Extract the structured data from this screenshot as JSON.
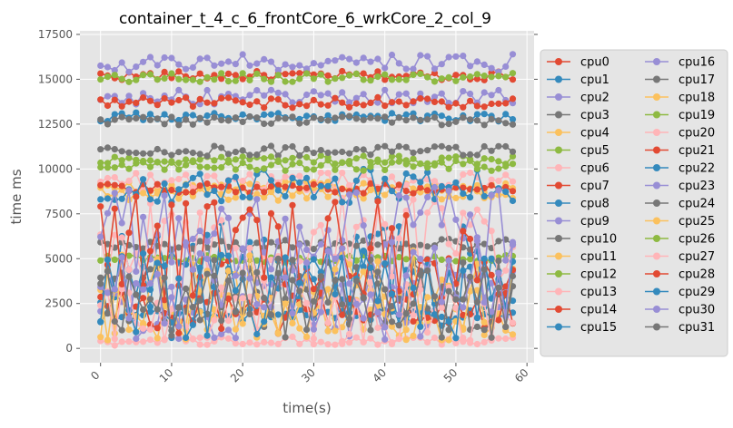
{
  "chart_data": {
    "type": "line",
    "title": "container_t_4_c_6_frontCore_6_wrkCore_2_col_9",
    "xlabel": "time(s)",
    "ylabel": "time ms",
    "xlim": [
      -2.9,
      61
    ],
    "ylim": [
      -800,
      17700
    ],
    "xticks": [
      0,
      10,
      20,
      30,
      40,
      50,
      60
    ],
    "yticks": [
      0,
      2500,
      5000,
      7500,
      10000,
      12500,
      15000,
      17500
    ],
    "ytick_labels": [
      "0",
      "2500",
      "5000",
      "7500",
      "10000",
      "12500",
      "15000",
      "17500"
    ],
    "grid": true,
    "legend": "outside-right, 2 columns",
    "x": [
      0,
      1,
      2,
      3,
      4,
      5,
      6,
      7,
      8,
      9,
      10,
      11,
      12,
      13,
      14,
      15,
      16,
      17,
      18,
      19,
      20,
      21,
      22,
      23,
      24,
      25,
      26,
      27,
      28,
      29,
      30,
      31,
      32,
      33,
      34,
      35,
      36,
      37,
      38,
      39,
      40,
      41,
      42,
      43,
      44,
      45,
      46,
      47,
      48,
      49,
      50,
      51,
      52,
      53,
      54,
      55,
      56,
      57,
      58
    ],
    "series": [
      {
        "name": "cpu0",
        "color": "#E24A33",
        "level": 15200,
        "amp": 250
      },
      {
        "name": "cpu1",
        "color": "#348ABD",
        "level": 12900,
        "amp": 250
      },
      {
        "name": "cpu2",
        "color": "#988ED5",
        "level": 14000,
        "amp": 400
      },
      {
        "name": "cpu3",
        "color": "#777777",
        "level": 12700,
        "amp": 250
      },
      {
        "name": "cpu4",
        "color": "#FBC15E",
        "level": 9000,
        "amp": 300
      },
      {
        "name": "cpu5",
        "color": "#8EBA42",
        "level": 10500,
        "amp": 250
      },
      {
        "name": "cpu6",
        "color": "#FFB5B8",
        "level": 9300,
        "amp": 500
      },
      {
        "name": "cpu7",
        "color": "#E24A33",
        "level": 13700,
        "amp": 300
      },
      {
        "name": "cpu8",
        "color": "#348ABD",
        "level": 1800,
        "amp": 350
      },
      {
        "name": "cpu9",
        "color": "#988ED5",
        "level": 15900,
        "amp": 500
      },
      {
        "name": "cpu10",
        "color": "#777777",
        "level": 11000,
        "amp": 300
      },
      {
        "name": "cpu11",
        "color": "#FBC15E",
        "level": 8600,
        "amp": 400
      },
      {
        "name": "cpu12",
        "color": "#8EBA42",
        "level": 5000,
        "amp": 200
      },
      {
        "name": "cpu13",
        "color": "#FFB5B8",
        "level": 400,
        "amp": 250
      },
      {
        "name": "cpu14",
        "color": "#E24A33",
        "level": 8900,
        "amp": 300
      },
      {
        "name": "cpu15",
        "color": "#348ABD",
        "level": 4500,
        "amp": 2500
      },
      {
        "name": "cpu16",
        "color": "#988ED5",
        "level": 2500,
        "amp": 2200
      },
      {
        "name": "cpu17",
        "color": "#777777",
        "level": 5800,
        "amp": 300
      },
      {
        "name": "cpu18",
        "color": "#FBC15E",
        "level": 1800,
        "amp": 1500
      },
      {
        "name": "cpu19",
        "color": "#8EBA42",
        "level": 15100,
        "amp": 250
      },
      {
        "name": "cpu20",
        "color": "#FFB5B8",
        "level": 6000,
        "amp": 2500
      },
      {
        "name": "cpu21",
        "color": "#E24A33",
        "level": 2000,
        "amp": 1200
      },
      {
        "name": "cpu22",
        "color": "#348ABD",
        "level": 9000,
        "amp": 1000
      },
      {
        "name": "cpu23",
        "color": "#988ED5",
        "level": 6500,
        "amp": 2500
      },
      {
        "name": "cpu24",
        "color": "#777777",
        "level": 3000,
        "amp": 2000
      },
      {
        "name": "cpu25",
        "color": "#FBC15E",
        "level": 3000,
        "amp": 2500
      },
      {
        "name": "cpu26",
        "color": "#8EBA42",
        "level": 10200,
        "amp": 300
      },
      {
        "name": "cpu27",
        "color": "#FFB5B8",
        "level": 2000,
        "amp": 1800
      },
      {
        "name": "cpu28",
        "color": "#E24A33",
        "level": 5500,
        "amp": 3000
      },
      {
        "name": "cpu29",
        "color": "#348ABD",
        "level": 3000,
        "amp": 2500
      },
      {
        "name": "cpu30",
        "color": "#988ED5",
        "level": 3500,
        "amp": 2500
      },
      {
        "name": "cpu31",
        "color": "#777777",
        "level": 2500,
        "amp": 2000
      }
    ]
  },
  "legend_entries": [
    "cpu0",
    "cpu1",
    "cpu2",
    "cpu3",
    "cpu4",
    "cpu5",
    "cpu6",
    "cpu7",
    "cpu8",
    "cpu9",
    "cpu10",
    "cpu11",
    "cpu12",
    "cpu13",
    "cpu14",
    "cpu15",
    "cpu16",
    "cpu17",
    "cpu18",
    "cpu19",
    "cpu20",
    "cpu21",
    "cpu22",
    "cpu23",
    "cpu24",
    "cpu25",
    "cpu26",
    "cpu27",
    "cpu28",
    "cpu29",
    "cpu30",
    "cpu31"
  ],
  "colors": {
    "plot_background": "#E5E5E5",
    "grid": "#FFFFFF",
    "axis_text": "#555555"
  }
}
